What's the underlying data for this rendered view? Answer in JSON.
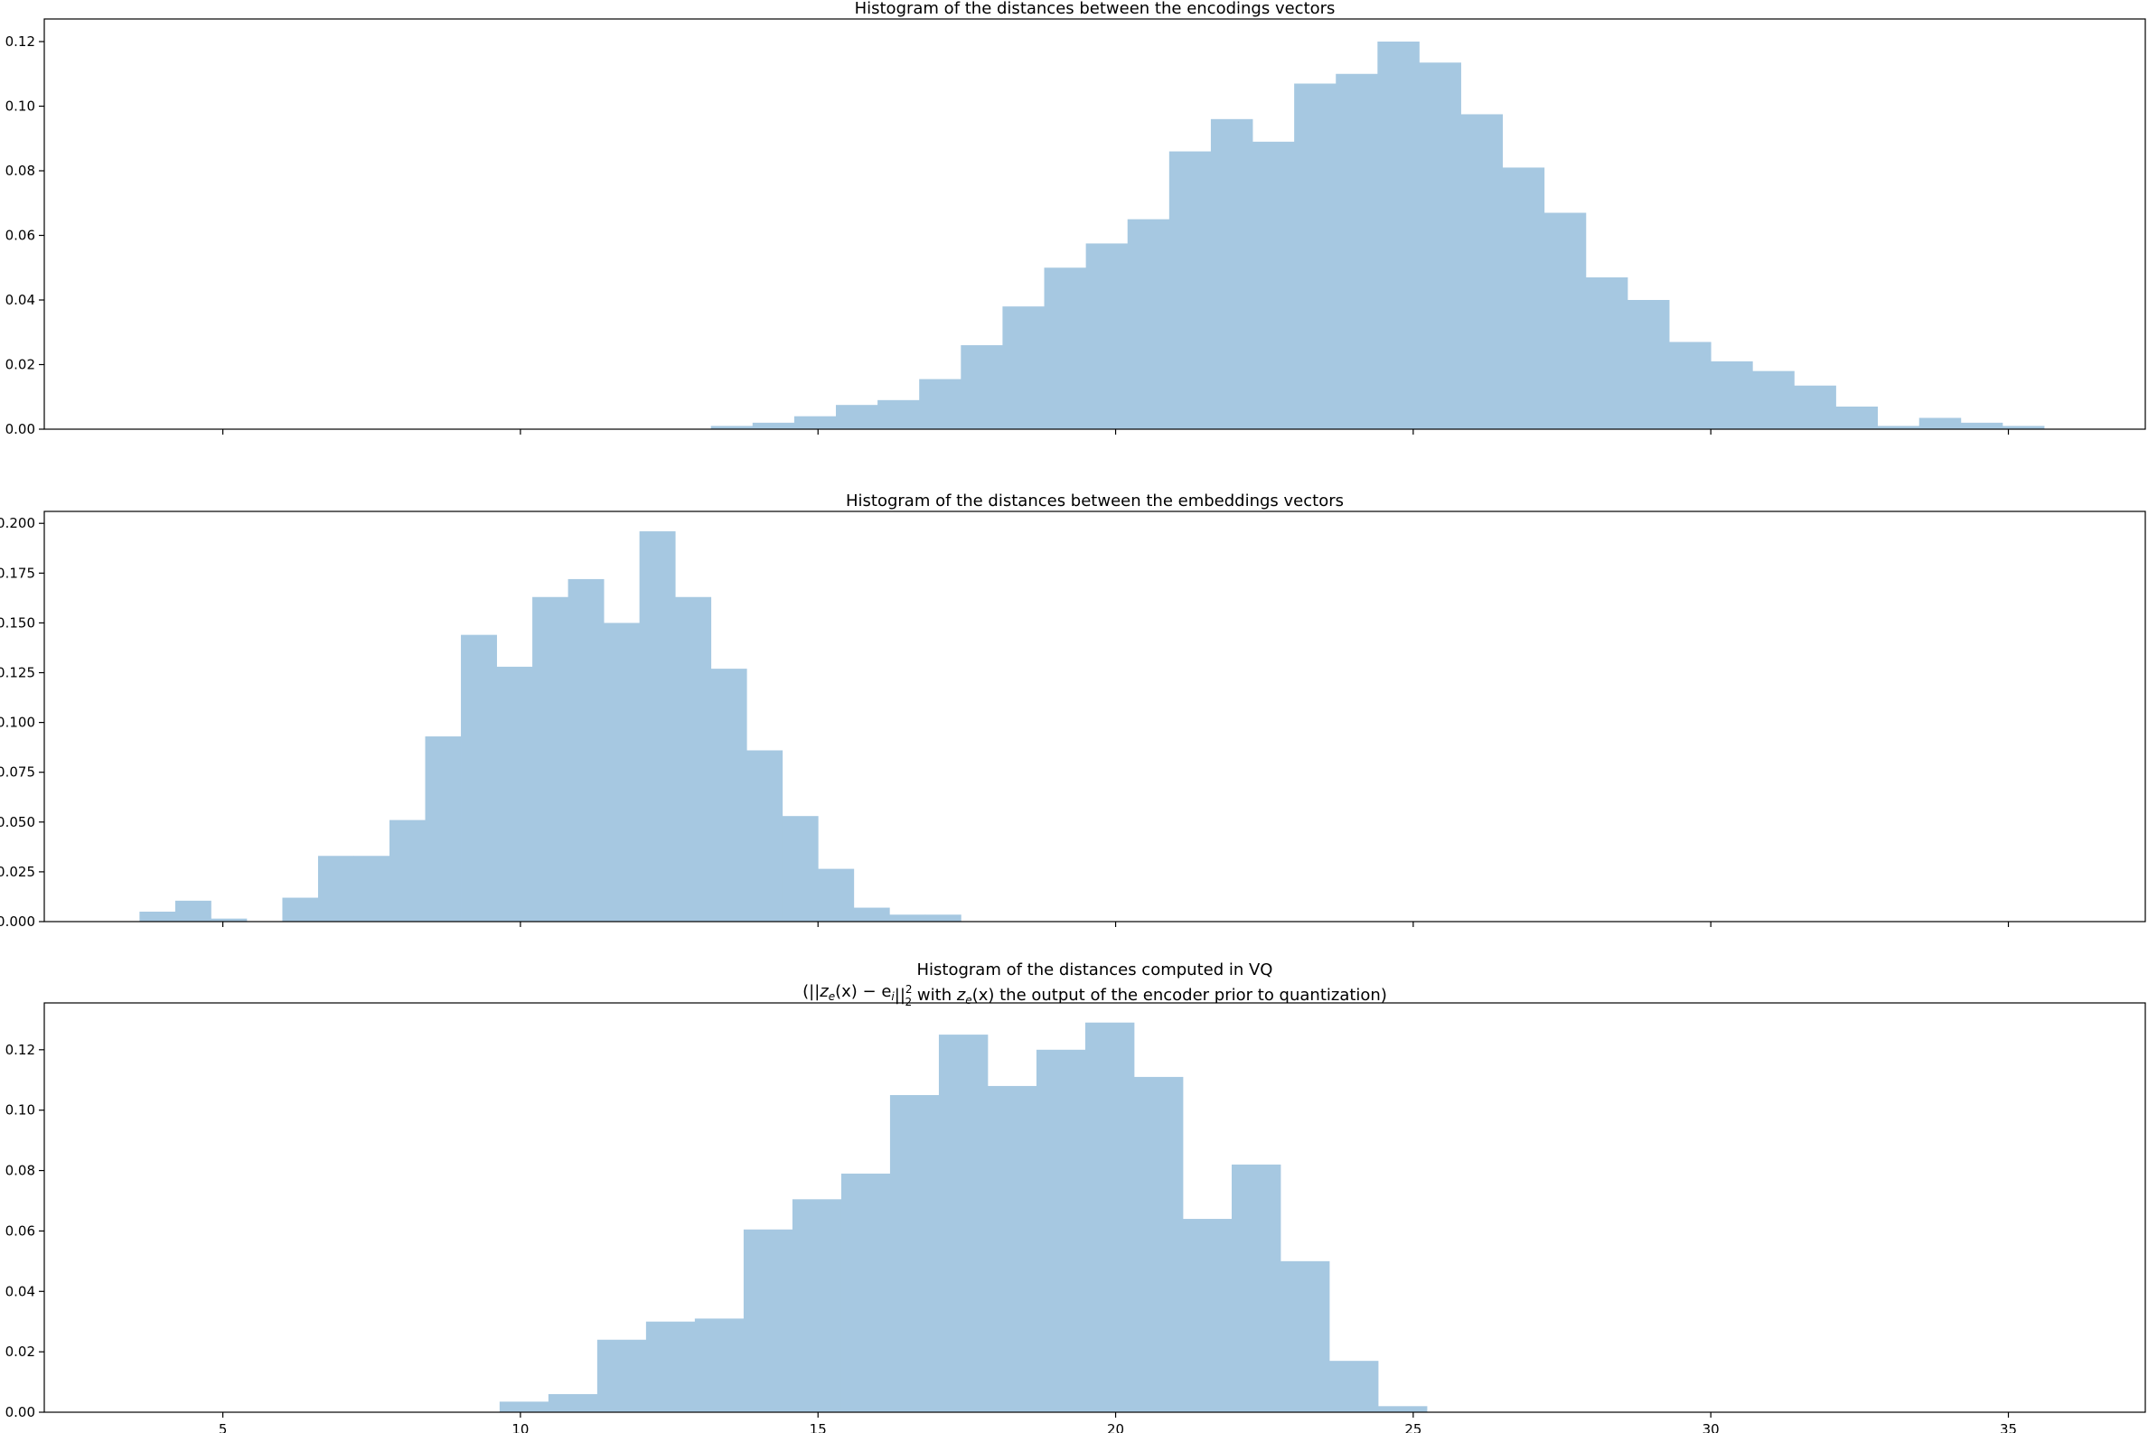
{
  "bar_color": "#a6c8e1",
  "chart_data": [
    {
      "type": "bar",
      "title": "Histogram of the distances between the encodings vectors",
      "xlim": [
        2,
        37.3
      ],
      "ylim": [
        0,
        0.127
      ],
      "xticks": [],
      "yticks": [
        "0.00",
        "0.02",
        "0.04",
        "0.06",
        "0.08",
        "0.10",
        "0.12"
      ],
      "bin_edges": [
        13.2,
        13.9,
        14.6,
        15.3,
        16.0,
        16.7,
        17.4,
        18.1,
        18.8,
        19.5,
        20.2,
        20.9,
        21.6,
        22.3,
        23.0,
        23.7,
        24.4,
        25.1,
        25.8,
        26.5,
        27.2,
        27.9,
        28.6,
        29.3,
        30.0,
        30.7,
        31.4,
        32.1,
        32.8,
        33.5,
        34.2,
        34.9,
        35.6
      ],
      "values": [
        0.001,
        0.002,
        0.004,
        0.0075,
        0.009,
        0.0155,
        0.026,
        0.038,
        0.05,
        0.0575,
        0.065,
        0.086,
        0.096,
        0.089,
        0.107,
        0.11,
        0.12,
        0.1135,
        0.0975,
        0.081,
        0.067,
        0.047,
        0.04,
        0.027,
        0.021,
        0.018,
        0.0135,
        0.007,
        0.001,
        0.0035,
        0.002,
        0.001
      ]
    },
    {
      "type": "bar",
      "title": "Histogram of the distances between the embeddings vectors",
      "xlim": [
        2,
        37.3
      ],
      "ylim": [
        0,
        0.206
      ],
      "xticks": [],
      "yticks": [
        "0.000",
        "0.025",
        "0.050",
        "0.075",
        "0.100",
        "0.125",
        "0.150",
        "0.175",
        "0.200"
      ],
      "bin_edges": [
        3.6,
        4.2,
        4.8,
        5.4,
        6.0,
        6.6,
        7.2,
        7.8,
        8.4,
        9.0,
        9.6,
        10.2,
        10.8,
        11.4,
        12.0,
        12.6,
        13.2,
        13.8,
        14.4,
        15.0,
        15.6,
        16.2,
        16.8,
        17.4
      ],
      "values": [
        0.005,
        0.0105,
        0.0015,
        0.0,
        0.012,
        0.033,
        0.033,
        0.051,
        0.093,
        0.144,
        0.128,
        0.163,
        0.172,
        0.15,
        0.196,
        0.163,
        0.127,
        0.086,
        0.053,
        0.0265,
        0.007,
        0.0035,
        0.0035
      ]
    },
    {
      "type": "bar",
      "title_line1": "Histogram of the distances computed in VQ",
      "title_line2": "(||z_e(x) − e_i||²₂ with z_e(x) the output of the encoder prior to quantization)",
      "title_math_a_prefix": "(||",
      "title_math_a": "z",
      "title_math_a_sub": "e",
      "title_math_a_mid": "(x) − e",
      "title_math_a_sub2": "i",
      "title_math_a_close": "||",
      "title_math_sup": "2",
      "title_math_sub3": "2",
      "title_text_with": " with ",
      "title_math_b": "z",
      "title_math_b_sub": "e",
      "title_math_b_rest": "(x)",
      "title_text_tail": " the output of the encoder prior to quantization)",
      "xlim": [
        2,
        37.3
      ],
      "ylim": [
        0,
        0.1355
      ],
      "xticks": [
        "5",
        "10",
        "15",
        "20",
        "25",
        "30",
        "35"
      ],
      "xtick_values": [
        5,
        10,
        15,
        20,
        25,
        30,
        35
      ],
      "yticks": [
        "0.00",
        "0.02",
        "0.04",
        "0.06",
        "0.08",
        "0.10",
        "0.12"
      ],
      "bin_edges": [
        9.65,
        10.47,
        11.29,
        12.11,
        12.93,
        13.75,
        14.57,
        15.39,
        16.21,
        17.03,
        17.85,
        18.67,
        19.49,
        20.31,
        21.13,
        21.95,
        22.77,
        23.59,
        24.41,
        25.23
      ],
      "values": [
        0.0035,
        0.006,
        0.024,
        0.03,
        0.031,
        0.0605,
        0.0705,
        0.079,
        0.105,
        0.125,
        0.108,
        0.12,
        0.129,
        0.111,
        0.064,
        0.082,
        0.05,
        0.017,
        0.002
      ]
    }
  ]
}
